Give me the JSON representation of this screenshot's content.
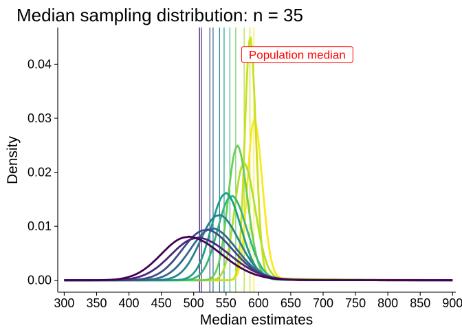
{
  "chart_data": {
    "type": "line",
    "title": "Median sampling distribution: n = 35",
    "xlabel": "Median estimates",
    "ylabel": "Density",
    "xlim": [
      290,
      905
    ],
    "ylim": [
      -0.0022,
      0.0468
    ],
    "x_ticks": [
      300,
      350,
      400,
      450,
      500,
      550,
      600,
      650,
      700,
      750,
      800,
      850,
      900
    ],
    "x_tick_labels": [
      "300",
      "350",
      "400",
      "450",
      "500",
      "550",
      "600",
      "650",
      "700",
      "750",
      "800",
      "850",
      "900"
    ],
    "y_ticks": [
      0.0,
      0.01,
      0.02,
      0.03,
      0.04
    ],
    "y_tick_labels": [
      "0.00",
      "0.01",
      "0.02",
      "0.03",
      "0.04"
    ],
    "grid": false,
    "legend": "none",
    "annotation": {
      "text": "Population median",
      "x": 660,
      "y": 0.0418,
      "color": "#ff0000"
    },
    "series": [
      {
        "color": "#440154",
        "median": 509,
        "peak_x": 490,
        "peak_y": 0.008,
        "left_sd": 40,
        "right_sd": 52
      },
      {
        "color": "#482878",
        "median": 512,
        "peak_x": 505,
        "peak_y": 0.0078,
        "left_sd": 40,
        "right_sd": 50
      },
      {
        "color": "#3E4A89",
        "median": 525,
        "peak_x": 518,
        "peak_y": 0.0093,
        "left_sd": 36,
        "right_sd": 42
      },
      {
        "color": "#31688E",
        "median": 530,
        "peak_x": 528,
        "peak_y": 0.0095,
        "left_sd": 33,
        "right_sd": 38
      },
      {
        "color": "#26828E",
        "median": 540,
        "peak_x": 538,
        "peak_y": 0.012,
        "left_sd": 28,
        "right_sd": 32
      },
      {
        "color": "#1F9E89",
        "median": 547,
        "peak_x": 549,
        "peak_y": 0.016,
        "left_sd": 22,
        "right_sd": 24
      },
      {
        "color": "#35B779",
        "median": 556,
        "peak_x": 558,
        "peak_y": 0.0155,
        "left_sd": 21,
        "right_sd": 24
      },
      {
        "color": "#6DCD59",
        "median": 565,
        "peak_x": 567,
        "peak_y": 0.0247,
        "left_sd": 14,
        "right_sd": 16
      },
      {
        "color": "#B4DE2C",
        "median": 578,
        "peak_x": 577,
        "peak_y": 0.0215,
        "left_sd": 14,
        "right_sd": 18
      },
      {
        "color": "#C8E020",
        "median": 587,
        "peak_x": 587,
        "peak_y": 0.0447,
        "left_sd": 8,
        "right_sd": 9
      },
      {
        "color": "#FDE725",
        "median": 593,
        "peak_x": 593,
        "peak_y": 0.0295,
        "left_sd": 10,
        "right_sd": 13
      }
    ]
  }
}
